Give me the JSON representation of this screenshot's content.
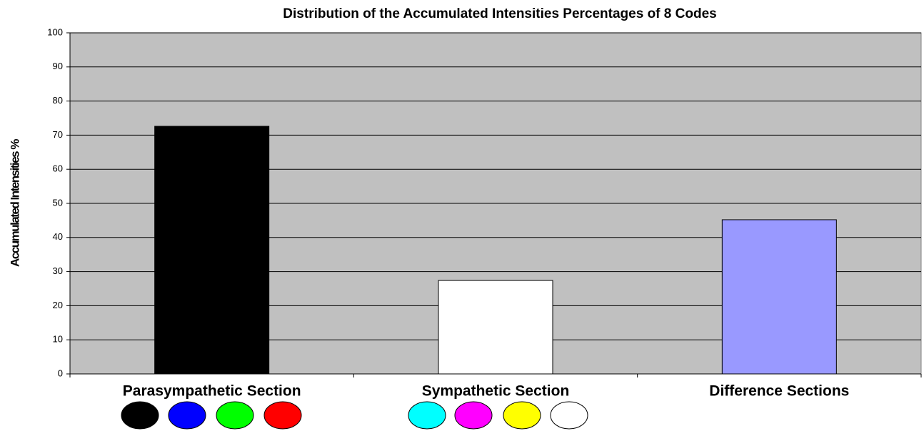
{
  "chart_data": {
    "type": "bar",
    "title": "Distribution of the Accumulated Intensities Percentages of 8 Codes",
    "y_label": "Accumulated Intensities %",
    "categories": [
      "Parasympathetic Section",
      "Sympathetic Section",
      "Difference Sections"
    ],
    "values": [
      72.6,
      27.4,
      45.2
    ],
    "colors": [
      "#000000",
      "#ffffff",
      "#9999ff"
    ],
    "ylim": [
      0,
      100
    ],
    "yticks": [
      0,
      10,
      20,
      30,
      40,
      50,
      60,
      70,
      80,
      90,
      100
    ],
    "grid": true
  }
}
